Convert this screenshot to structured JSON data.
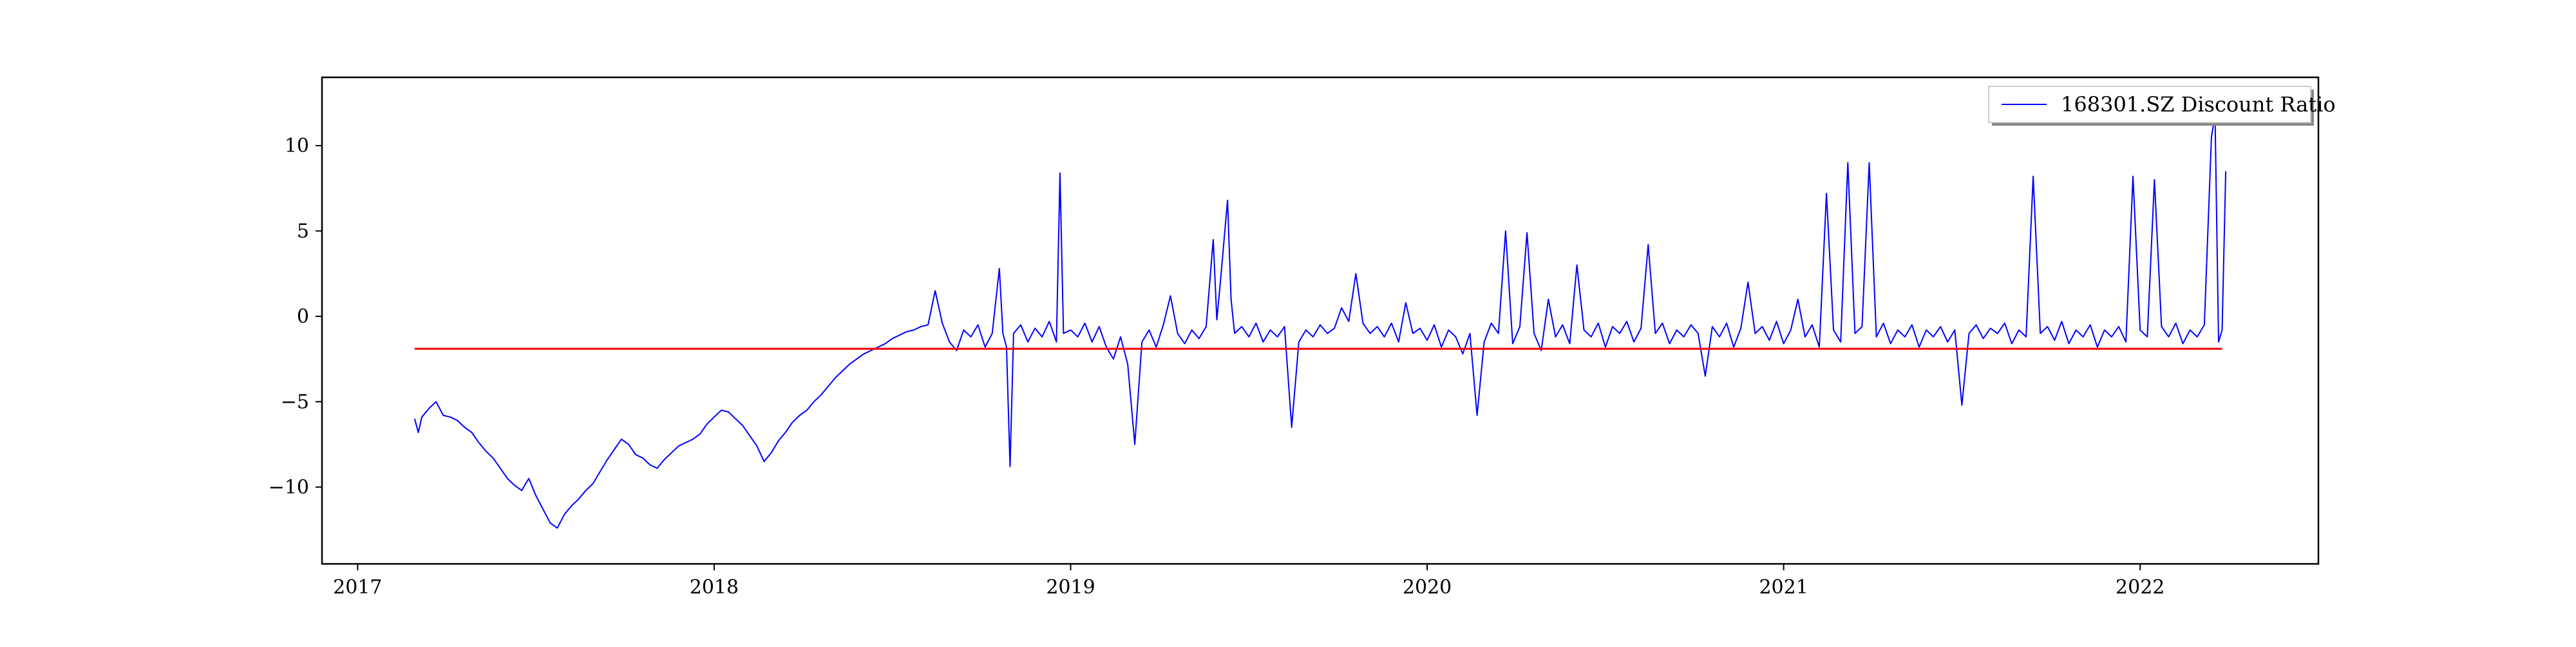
{
  "chart_data": {
    "type": "line",
    "title": "",
    "xlabel": "",
    "ylabel": "",
    "xlim": [
      2016.9,
      2022.5
    ],
    "ylim": [
      -14.5,
      14.0
    ],
    "x_ticks": [
      2017,
      2018,
      2019,
      2020,
      2021,
      2022
    ],
    "x_tick_labels": [
      "2017",
      "2018",
      "2019",
      "2020",
      "2021",
      "2022"
    ],
    "y_ticks": [
      -10,
      -5,
      0,
      5,
      10
    ],
    "y_tick_labels": [
      "−10",
      "−5",
      "0",
      "5",
      "10"
    ],
    "grid": false,
    "legend": {
      "position": "top-right",
      "entries": [
        "168301.SZ Discount Ratio"
      ]
    },
    "series": [
      {
        "name": "168301.SZ Discount Ratio",
        "color": "#0000ff",
        "points": [
          [
            2017.16,
            -6.0
          ],
          [
            2017.17,
            -6.8
          ],
          [
            2017.18,
            -5.9
          ],
          [
            2017.2,
            -5.4
          ],
          [
            2017.22,
            -5.0
          ],
          [
            2017.24,
            -5.8
          ],
          [
            2017.26,
            -5.9
          ],
          [
            2017.28,
            -6.1
          ],
          [
            2017.3,
            -6.5
          ],
          [
            2017.32,
            -6.8
          ],
          [
            2017.34,
            -7.4
          ],
          [
            2017.36,
            -7.9
          ],
          [
            2017.38,
            -8.3
          ],
          [
            2017.4,
            -8.9
          ],
          [
            2017.42,
            -9.5
          ],
          [
            2017.44,
            -9.9
          ],
          [
            2017.46,
            -10.2
          ],
          [
            2017.48,
            -9.5
          ],
          [
            2017.5,
            -10.5
          ],
          [
            2017.52,
            -11.3
          ],
          [
            2017.54,
            -12.1
          ],
          [
            2017.56,
            -12.4
          ],
          [
            2017.58,
            -11.6
          ],
          [
            2017.6,
            -11.1
          ],
          [
            2017.62,
            -10.7
          ],
          [
            2017.64,
            -10.2
          ],
          [
            2017.66,
            -9.8
          ],
          [
            2017.68,
            -9.1
          ],
          [
            2017.7,
            -8.4
          ],
          [
            2017.72,
            -7.8
          ],
          [
            2017.74,
            -7.2
          ],
          [
            2017.76,
            -7.5
          ],
          [
            2017.78,
            -8.1
          ],
          [
            2017.8,
            -8.3
          ],
          [
            2017.82,
            -8.7
          ],
          [
            2017.84,
            -8.9
          ],
          [
            2017.86,
            -8.4
          ],
          [
            2017.88,
            -8.0
          ],
          [
            2017.9,
            -7.6
          ],
          [
            2017.92,
            -7.4
          ],
          [
            2017.94,
            -7.2
          ],
          [
            2017.96,
            -6.9
          ],
          [
            2017.98,
            -6.3
          ],
          [
            2018.0,
            -5.9
          ],
          [
            2018.02,
            -5.5
          ],
          [
            2018.04,
            -5.6
          ],
          [
            2018.06,
            -6.0
          ],
          [
            2018.08,
            -6.4
          ],
          [
            2018.1,
            -7.0
          ],
          [
            2018.12,
            -7.6
          ],
          [
            2018.14,
            -8.5
          ],
          [
            2018.16,
            -8.0
          ],
          [
            2018.18,
            -7.3
          ],
          [
            2018.2,
            -6.8
          ],
          [
            2018.22,
            -6.2
          ],
          [
            2018.24,
            -5.8
          ],
          [
            2018.26,
            -5.5
          ],
          [
            2018.28,
            -5.0
          ],
          [
            2018.3,
            -4.6
          ],
          [
            2018.32,
            -4.1
          ],
          [
            2018.34,
            -3.6
          ],
          [
            2018.36,
            -3.2
          ],
          [
            2018.38,
            -2.8
          ],
          [
            2018.4,
            -2.5
          ],
          [
            2018.42,
            -2.2
          ],
          [
            2018.44,
            -2.0
          ],
          [
            2018.46,
            -1.8
          ],
          [
            2018.48,
            -1.6
          ],
          [
            2018.5,
            -1.3
          ],
          [
            2018.52,
            -1.1
          ],
          [
            2018.54,
            -0.9
          ],
          [
            2018.56,
            -0.8
          ],
          [
            2018.58,
            -0.6
          ],
          [
            2018.6,
            -0.5
          ],
          [
            2018.62,
            1.5
          ],
          [
            2018.64,
            -0.4
          ],
          [
            2018.66,
            -1.5
          ],
          [
            2018.68,
            -2.0
          ],
          [
            2018.7,
            -0.8
          ],
          [
            2018.72,
            -1.2
          ],
          [
            2018.74,
            -0.5
          ],
          [
            2018.76,
            -1.8
          ],
          [
            2018.78,
            -1.0
          ],
          [
            2018.8,
            2.8
          ],
          [
            2018.81,
            -1.0
          ],
          [
            2018.82,
            -1.8
          ],
          [
            2018.83,
            -8.8
          ],
          [
            2018.84,
            -1.0
          ],
          [
            2018.86,
            -0.5
          ],
          [
            2018.88,
            -1.5
          ],
          [
            2018.9,
            -0.7
          ],
          [
            2018.92,
            -1.2
          ],
          [
            2018.94,
            -0.3
          ],
          [
            2018.96,
            -1.5
          ],
          [
            2018.97,
            8.4
          ],
          [
            2018.98,
            -1.0
          ],
          [
            2019.0,
            -0.8
          ],
          [
            2019.02,
            -1.2
          ],
          [
            2019.04,
            -0.4
          ],
          [
            2019.06,
            -1.5
          ],
          [
            2019.08,
            -0.6
          ],
          [
            2019.1,
            -1.8
          ],
          [
            2019.12,
            -2.5
          ],
          [
            2019.14,
            -1.2
          ],
          [
            2019.16,
            -2.8
          ],
          [
            2019.18,
            -7.5
          ],
          [
            2019.2,
            -1.5
          ],
          [
            2019.22,
            -0.8
          ],
          [
            2019.24,
            -1.8
          ],
          [
            2019.26,
            -0.5
          ],
          [
            2019.28,
            1.2
          ],
          [
            2019.3,
            -1.0
          ],
          [
            2019.32,
            -1.6
          ],
          [
            2019.34,
            -0.8
          ],
          [
            2019.36,
            -1.3
          ],
          [
            2019.38,
            -0.6
          ],
          [
            2019.4,
            4.5
          ],
          [
            2019.41,
            -0.2
          ],
          [
            2019.42,
            2.0
          ],
          [
            2019.44,
            6.8
          ],
          [
            2019.45,
            1.0
          ],
          [
            2019.46,
            -1.0
          ],
          [
            2019.48,
            -0.6
          ],
          [
            2019.5,
            -1.2
          ],
          [
            2019.52,
            -0.4
          ],
          [
            2019.54,
            -1.5
          ],
          [
            2019.56,
            -0.8
          ],
          [
            2019.58,
            -1.2
          ],
          [
            2019.6,
            -0.6
          ],
          [
            2019.62,
            -6.5
          ],
          [
            2019.64,
            -1.5
          ],
          [
            2019.66,
            -0.8
          ],
          [
            2019.68,
            -1.2
          ],
          [
            2019.7,
            -0.5
          ],
          [
            2019.72,
            -1.0
          ],
          [
            2019.74,
            -0.7
          ],
          [
            2019.76,
            0.5
          ],
          [
            2019.78,
            -0.3
          ],
          [
            2019.8,
            2.5
          ],
          [
            2019.82,
            -0.4
          ],
          [
            2019.84,
            -1.0
          ],
          [
            2019.86,
            -0.6
          ],
          [
            2019.88,
            -1.2
          ],
          [
            2019.9,
            -0.4
          ],
          [
            2019.92,
            -1.5
          ],
          [
            2019.94,
            0.8
          ],
          [
            2019.96,
            -1.0
          ],
          [
            2019.98,
            -0.7
          ],
          [
            2020.0,
            -1.4
          ],
          [
            2020.02,
            -0.5
          ],
          [
            2020.04,
            -1.8
          ],
          [
            2020.06,
            -0.8
          ],
          [
            2020.08,
            -1.2
          ],
          [
            2020.1,
            -2.2
          ],
          [
            2020.12,
            -1.0
          ],
          [
            2020.14,
            -5.8
          ],
          [
            2020.16,
            -1.5
          ],
          [
            2020.18,
            -0.4
          ],
          [
            2020.2,
            -1.0
          ],
          [
            2020.22,
            5.0
          ],
          [
            2020.24,
            -1.6
          ],
          [
            2020.26,
            -0.6
          ],
          [
            2020.28,
            4.9
          ],
          [
            2020.3,
            -1.0
          ],
          [
            2020.32,
            -2.0
          ],
          [
            2020.34,
            1.0
          ],
          [
            2020.36,
            -1.2
          ],
          [
            2020.38,
            -0.5
          ],
          [
            2020.4,
            -1.6
          ],
          [
            2020.42,
            3.0
          ],
          [
            2020.44,
            -0.8
          ],
          [
            2020.46,
            -1.2
          ],
          [
            2020.48,
            -0.4
          ],
          [
            2020.5,
            -1.8
          ],
          [
            2020.52,
            -0.6
          ],
          [
            2020.54,
            -1.0
          ],
          [
            2020.56,
            -0.3
          ],
          [
            2020.58,
            -1.5
          ],
          [
            2020.6,
            -0.7
          ],
          [
            2020.62,
            4.2
          ],
          [
            2020.64,
            -1.0
          ],
          [
            2020.66,
            -0.4
          ],
          [
            2020.68,
            -1.6
          ],
          [
            2020.7,
            -0.8
          ],
          [
            2020.72,
            -1.2
          ],
          [
            2020.74,
            -0.5
          ],
          [
            2020.76,
            -1.0
          ],
          [
            2020.78,
            -3.5
          ],
          [
            2020.8,
            -0.6
          ],
          [
            2020.82,
            -1.2
          ],
          [
            2020.84,
            -0.4
          ],
          [
            2020.86,
            -1.8
          ],
          [
            2020.88,
            -0.7
          ],
          [
            2020.9,
            2.0
          ],
          [
            2020.92,
            -1.0
          ],
          [
            2020.94,
            -0.6
          ],
          [
            2020.96,
            -1.4
          ],
          [
            2020.98,
            -0.3
          ],
          [
            2021.0,
            -1.6
          ],
          [
            2021.02,
            -0.8
          ],
          [
            2021.04,
            1.0
          ],
          [
            2021.06,
            -1.2
          ],
          [
            2021.08,
            -0.5
          ],
          [
            2021.1,
            -1.8
          ],
          [
            2021.12,
            7.2
          ],
          [
            2021.14,
            -0.8
          ],
          [
            2021.16,
            -1.5
          ],
          [
            2021.18,
            9.0
          ],
          [
            2021.2,
            -1.0
          ],
          [
            2021.22,
            -0.6
          ],
          [
            2021.24,
            9.0
          ],
          [
            2021.26,
            -1.2
          ],
          [
            2021.28,
            -0.4
          ],
          [
            2021.3,
            -1.6
          ],
          [
            2021.32,
            -0.8
          ],
          [
            2021.34,
            -1.2
          ],
          [
            2021.36,
            -0.5
          ],
          [
            2021.38,
            -1.8
          ],
          [
            2021.4,
            -0.8
          ],
          [
            2021.42,
            -1.2
          ],
          [
            2021.44,
            -0.6
          ],
          [
            2021.46,
            -1.5
          ],
          [
            2021.48,
            -0.8
          ],
          [
            2021.5,
            -5.2
          ],
          [
            2021.52,
            -1.0
          ],
          [
            2021.54,
            -0.5
          ],
          [
            2021.56,
            -1.3
          ],
          [
            2021.58,
            -0.7
          ],
          [
            2021.6,
            -1.0
          ],
          [
            2021.62,
            -0.4
          ],
          [
            2021.64,
            -1.6
          ],
          [
            2021.66,
            -0.8
          ],
          [
            2021.68,
            -1.2
          ],
          [
            2021.7,
            8.2
          ],
          [
            2021.72,
            -1.0
          ],
          [
            2021.74,
            -0.6
          ],
          [
            2021.76,
            -1.4
          ],
          [
            2021.78,
            -0.3
          ],
          [
            2021.8,
            -1.6
          ],
          [
            2021.82,
            -0.8
          ],
          [
            2021.84,
            -1.2
          ],
          [
            2021.86,
            -0.5
          ],
          [
            2021.88,
            -1.8
          ],
          [
            2021.9,
            -0.8
          ],
          [
            2021.92,
            -1.2
          ],
          [
            2021.94,
            -0.6
          ],
          [
            2021.96,
            -1.5
          ],
          [
            2021.98,
            8.2
          ],
          [
            2022.0,
            -0.8
          ],
          [
            2022.02,
            -1.2
          ],
          [
            2022.04,
            8.0
          ],
          [
            2022.06,
            -0.6
          ],
          [
            2022.08,
            -1.2
          ],
          [
            2022.1,
            -0.4
          ],
          [
            2022.12,
            -1.6
          ],
          [
            2022.14,
            -0.8
          ],
          [
            2022.16,
            -1.2
          ],
          [
            2022.18,
            -0.5
          ],
          [
            2022.2,
            10.5
          ],
          [
            2022.21,
            11.8
          ],
          [
            2022.22,
            -1.5
          ],
          [
            2022.23,
            -0.8
          ],
          [
            2022.24,
            8.5
          ]
        ]
      },
      {
        "name": "",
        "color": "#ff0000",
        "points": [
          [
            2017.16,
            -1.9
          ],
          [
            2022.23,
            -1.9
          ]
        ]
      }
    ]
  }
}
